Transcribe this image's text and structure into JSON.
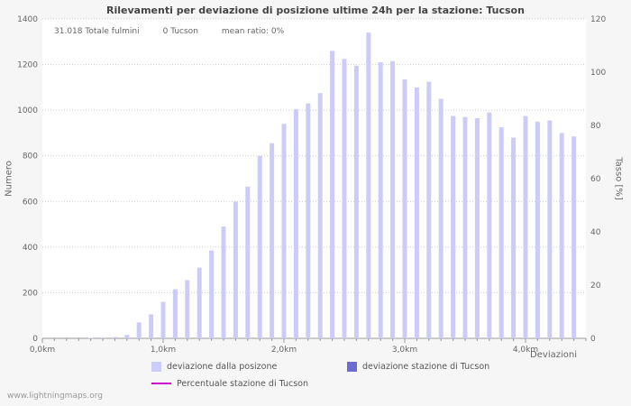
{
  "page": {
    "footer": "www.lightningmaps.org"
  },
  "stats": {
    "total": "31.018 Totale fulmini",
    "station": "0 Tucson",
    "ratio": "mean ratio: 0%"
  },
  "chart_data": {
    "type": "bar",
    "title": "Rilevamenti per deviazione di posizione ultime 24h per la stazione: Tucson",
    "xlabel": "Deviazioni",
    "ylabel": "Numero",
    "ylabel_right": "Tasso [%]",
    "x_unit": "km",
    "x_start": 0.0,
    "x_step": 0.1,
    "x_tick_labels": [
      "0,0km",
      "1,0km",
      "2,0km",
      "3,0km",
      "4,0km"
    ],
    "ylim_left": [
      0,
      1400
    ],
    "yticks_left": [
      0,
      200,
      400,
      600,
      800,
      1000,
      1200,
      1400
    ],
    "ylim_right": [
      0,
      120
    ],
    "yticks_right": [
      0,
      20,
      40,
      60,
      80,
      100,
      120
    ],
    "grid": "horizontal-dotted",
    "legend_position": "bottom",
    "series": [
      {
        "name": "deviazione dalla posizone",
        "type": "bar",
        "color": "#ccccf8",
        "values": [
          0,
          0,
          0,
          0,
          2,
          3,
          6,
          15,
          70,
          105,
          160,
          215,
          255,
          310,
          385,
          490,
          600,
          665,
          800,
          855,
          940,
          1005,
          1030,
          1075,
          1260,
          1225,
          1195,
          1340,
          1210,
          1215,
          1135,
          1100,
          1125,
          1050,
          975,
          970,
          965,
          990,
          925,
          880,
          975,
          950,
          955,
          900,
          885
        ]
      },
      {
        "name": "deviazione stazione di Tucson",
        "type": "bar",
        "color": "#6b6bd2",
        "values": [
          0,
          0,
          0,
          0,
          0,
          0,
          0,
          0,
          0,
          0,
          0,
          0,
          0,
          0,
          0,
          0,
          0,
          0,
          0,
          0,
          0,
          0,
          0,
          0,
          0,
          0,
          0,
          0,
          0,
          0,
          0,
          0,
          0,
          0,
          0,
          0,
          0,
          0,
          0,
          0,
          0,
          0,
          0,
          0,
          0
        ]
      },
      {
        "name": "Percentuale stazione di Tucson",
        "type": "line",
        "color": "#cc00cc",
        "values": [
          0,
          0,
          0,
          0,
          0,
          0,
          0,
          0,
          0,
          0,
          0,
          0,
          0,
          0,
          0,
          0,
          0,
          0,
          0,
          0,
          0,
          0,
          0,
          0,
          0,
          0,
          0,
          0,
          0,
          0,
          0,
          0,
          0,
          0,
          0,
          0,
          0,
          0,
          0,
          0,
          0,
          0,
          0,
          0,
          0
        ]
      }
    ]
  }
}
